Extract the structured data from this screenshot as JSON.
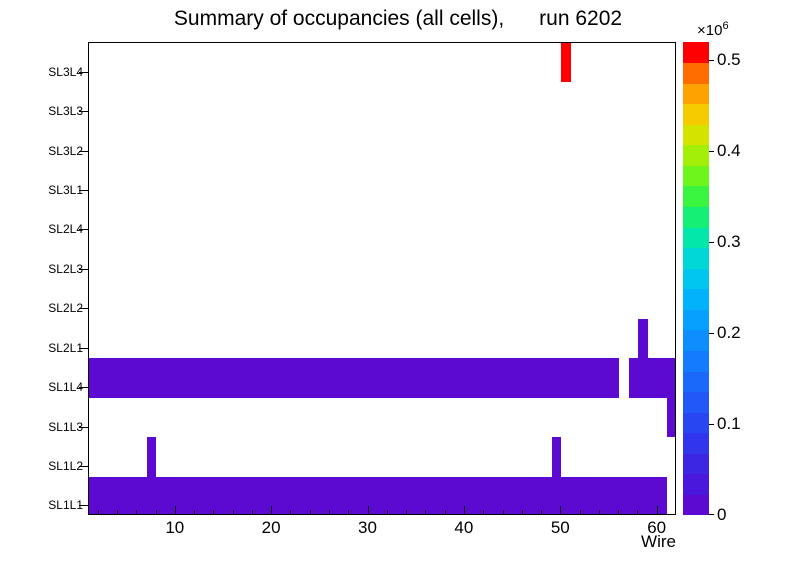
{
  "title": "Summary of occupancies (all cells),      run 6202",
  "chart_data": {
    "type": "heatmap",
    "title": "Summary of occupancies (all cells),      run 6202",
    "xlabel": "Wire",
    "x_range": [
      1,
      62
    ],
    "x_major_ticks": [
      10,
      20,
      30,
      40,
      50,
      60
    ],
    "x_minor_tick_step": 2,
    "rows_bottom_to_top": [
      "SL1L1",
      "SL1L2",
      "SL1L3",
      "SL1L4",
      "SL2L1",
      "SL2L2",
      "SL2L3",
      "SL2L4",
      "SL3L1",
      "SL3L2",
      "SL3L3",
      "SL3L4"
    ],
    "zlim": [
      0,
      520000
    ],
    "z_axis": {
      "ticks": [
        {
          "label": "0",
          "value": 0
        },
        {
          "label": "0.1",
          "value": 100000
        },
        {
          "label": "0.2",
          "value": 200000
        },
        {
          "label": "0.3",
          "value": 300000
        },
        {
          "label": "0.4",
          "value": 400000
        },
        {
          "label": "0.5",
          "value": 500000
        }
      ],
      "exponent_mantissa": "×10",
      "exponent_power": "6"
    },
    "palette_bottom_to_top": [
      "#5c0ad2",
      "#4a18dc",
      "#3c26e4",
      "#3136ec",
      "#2847f2",
      "#2158f7",
      "#1b69fa",
      "#147bfc",
      "#0e8dfd",
      "#07a0fd",
      "#02b3fb",
      "#00c6f0",
      "#00d8d8",
      "#04e7ab",
      "#16ef75",
      "#3af53f",
      "#6ef51b",
      "#a3ef08",
      "#d4e300",
      "#f4cc00",
      "#fda200",
      "#ff6d00",
      "#ff0000"
    ],
    "cells": [
      {
        "row": "SL1L1",
        "wire_first": 1,
        "wire_last": 60,
        "value": 20000
      },
      {
        "row": "SL1L2",
        "wire_first": 7,
        "wire_last": 7,
        "value": 20000
      },
      {
        "row": "SL1L2",
        "wire_first": 49,
        "wire_last": 49,
        "value": 20000
      },
      {
        "row": "SL1L3",
        "wire_first": 61,
        "wire_last": 61,
        "value": 20000
      },
      {
        "row": "SL1L4",
        "wire_first": 1,
        "wire_last": 55,
        "value": 20000
      },
      {
        "row": "SL1L4",
        "wire_first": 57,
        "wire_last": 61,
        "value": 20000
      },
      {
        "row": "SL2L1",
        "wire_first": 58,
        "wire_last": 58,
        "value": 20000
      },
      {
        "row": "SL3L4",
        "wire_first": 50,
        "wire_last": 50,
        "value": 500000
      }
    ]
  }
}
